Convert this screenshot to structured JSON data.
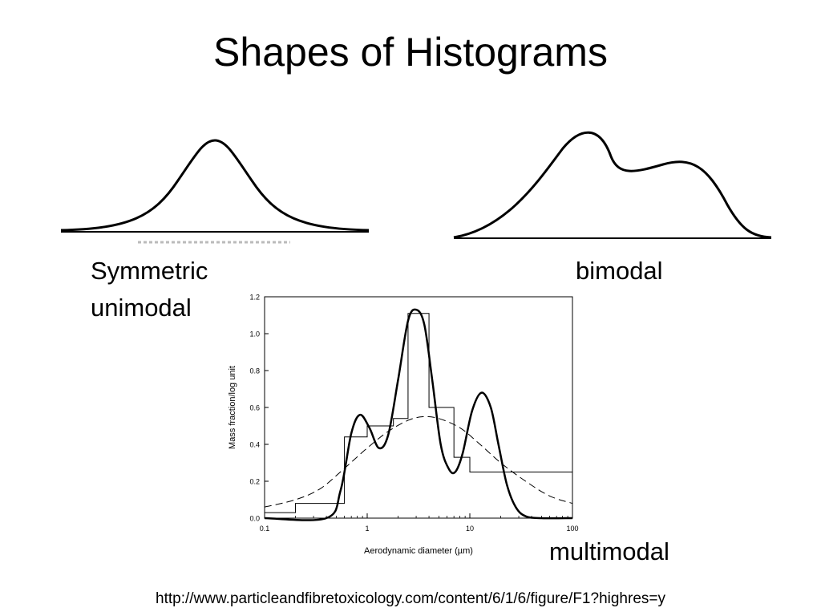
{
  "slide": {
    "title": "Shapes of Histograms",
    "labels": {
      "symmetric_line1": "Symmetric",
      "symmetric_line2": "unimodal",
      "bimodal": "bimodal",
      "multimodal": "multimodal"
    },
    "source_url": "http://www.particleandfibretoxicology.com/content/6/1/6/figure/F1?highres=y"
  },
  "chart_data": {
    "type": "line",
    "xlabel": "Aerodynamic diameter (µm)",
    "ylabel": "Mass fraction/log unit",
    "x_scale": "log",
    "xlim": [
      0.1,
      100
    ],
    "ylim": [
      0,
      1.2
    ],
    "x_ticks": [
      0.1,
      1,
      10,
      100
    ],
    "x_tick_labels": [
      "0.1",
      "1",
      "10",
      "100"
    ],
    "y_ticks": [
      0,
      0.2,
      0.4,
      0.6,
      0.8,
      1.0,
      1.2
    ],
    "y_tick_labels": [
      "0.0",
      "0.2",
      "0.4",
      "0.6",
      "0.8",
      "1.0",
      "1.2"
    ],
    "histogram": {
      "edges": [
        0.1,
        0.2,
        0.6,
        1.0,
        1.8,
        2.5,
        4.0,
        7.0,
        10.0,
        100
      ],
      "values": [
        0.03,
        0.08,
        0.44,
        0.5,
        0.54,
        1.11,
        0.6,
        0.33,
        0.25
      ]
    },
    "multimodal_curve": {
      "x": [
        0.1,
        0.4,
        0.55,
        0.7,
        0.85,
        1.05,
        1.3,
        1.6,
        2.0,
        2.5,
        3.0,
        3.6,
        4.3,
        5.2,
        6.2,
        7.2,
        8.5,
        10.5,
        13,
        16,
        19,
        23,
        28,
        35,
        50,
        100
      ],
      "y": [
        0.0,
        0.0,
        0.15,
        0.46,
        0.56,
        0.49,
        0.38,
        0.45,
        0.75,
        1.07,
        1.13,
        1.05,
        0.75,
        0.4,
        0.27,
        0.25,
        0.35,
        0.58,
        0.68,
        0.6,
        0.4,
        0.18,
        0.06,
        0.01,
        0.0,
        0.0
      ]
    },
    "lognormal_curve": {
      "x": [
        0.1,
        0.2,
        0.35,
        0.6,
        1.0,
        1.6,
        2.5,
        3.5,
        5.0,
        8.0,
        12,
        20,
        35,
        60,
        100
      ],
      "y": [
        0.06,
        0.1,
        0.16,
        0.27,
        0.38,
        0.47,
        0.53,
        0.55,
        0.54,
        0.49,
        0.41,
        0.3,
        0.2,
        0.12,
        0.08
      ]
    }
  }
}
